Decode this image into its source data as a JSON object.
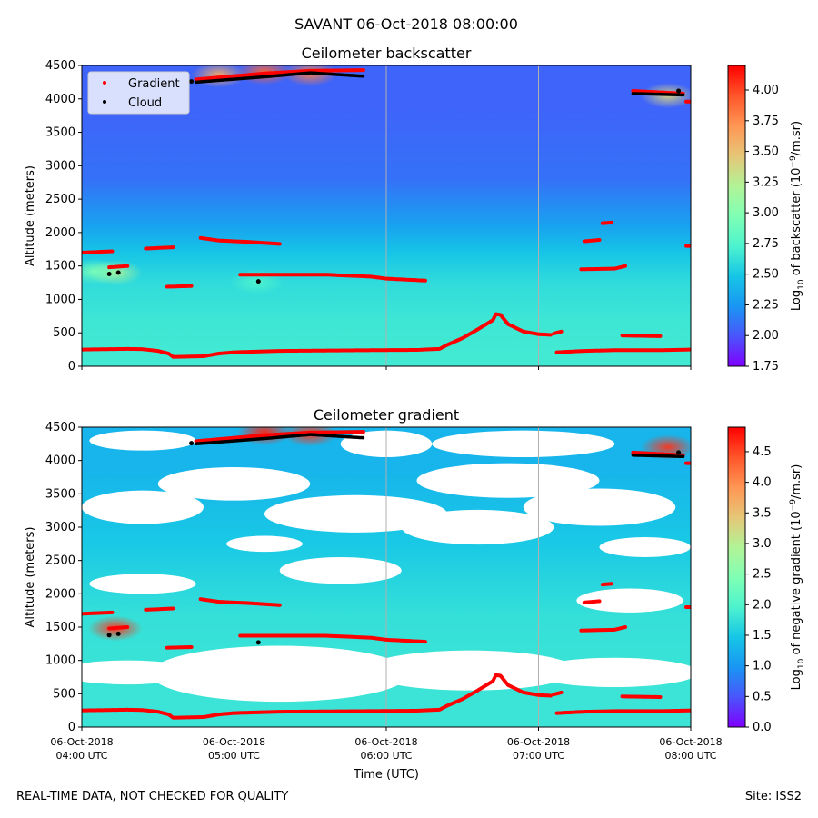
{
  "figure": {
    "suptitle": "SAVANT 06-Oct-2018 08:00:00",
    "footer_left": "REAL-TIME DATA, NOT CHECKED FOR QUALITY",
    "footer_right": "Site: ISS2"
  },
  "colors": {
    "rainbow": [
      "#8000ff",
      "#4a55fb",
      "#1996f3",
      "#16c6e6",
      "#4df3ce",
      "#80ffb4",
      "#b2f396",
      "#e6c677",
      "#ff9654",
      "#ff552a",
      "#ff0000"
    ],
    "gradient_marker": "#ff0000",
    "cloud_marker": "#000000",
    "vertical_gridline": "#b0b0b0"
  },
  "chart_data": [
    {
      "type": "heatmap",
      "title": "Ceilometer backscatter",
      "xlabel": "",
      "ylabel": "Altitude (meters)",
      "xticks": [
        "06-Oct-2018\n04:00 UTC",
        "06-Oct-2018\n05:00 UTC",
        "06-Oct-2018\n06:00 UTC",
        "06-Oct-2018\n07:00 UTC",
        "06-Oct-2018\n08:00 UTC"
      ],
      "show_xtick_labels": false,
      "x_hours": [
        4,
        8
      ],
      "ylim": [
        0,
        4500
      ],
      "yticks": [
        0,
        500,
        1000,
        1500,
        2000,
        2500,
        3000,
        3500,
        4000,
        4500
      ],
      "colorbar": {
        "label_prefix": "Log",
        "label_sub": "10",
        "label_mid": " of backscatter (10",
        "label_sup": "−9",
        "label_suffix": "/m.sr)",
        "range": [
          1.75,
          4.2
        ],
        "ticks": [
          "1.75",
          "2.00",
          "2.25",
          "2.50",
          "2.75",
          "3.00",
          "3.25",
          "3.50",
          "3.75",
          "4.00"
        ]
      },
      "legend": {
        "position": "upper-left",
        "entries": [
          {
            "label": "Gradient",
            "color": "#ff0000"
          },
          {
            "label": "Cloud",
            "color": "#000000"
          }
        ]
      },
      "field_bands": [
        {
          "from": 0,
          "to": 400,
          "value": 2.68
        },
        {
          "from": 400,
          "to": 1000,
          "value": 2.66
        },
        {
          "from": 1000,
          "to": 1500,
          "value": 2.6
        },
        {
          "from": 1500,
          "to": 1900,
          "value": 2.48
        },
        {
          "from": 1900,
          "to": 2300,
          "value": 2.3
        },
        {
          "from": 2300,
          "to": 3300,
          "value": 2.1
        },
        {
          "from": 3300,
          "to": 4500,
          "value": 2.05
        }
      ],
      "hotspots": [
        {
          "x": 4.22,
          "y": 1400,
          "value": 3.2
        },
        {
          "x": 4.08,
          "y": 1420,
          "value": 2.95
        },
        {
          "x": 5.15,
          "y": 1260,
          "value": 2.75
        },
        {
          "x": 4.9,
          "y": 4360,
          "value": 3.6
        },
        {
          "x": 5.2,
          "y": 4400,
          "value": 3.9
        },
        {
          "x": 5.5,
          "y": 4380,
          "value": 3.8
        },
        {
          "x": 7.85,
          "y": 4050,
          "value": 3.4
        }
      ],
      "gradient_segments": [
        [
          [
            4.0,
            250
          ],
          [
            4.3,
            260
          ],
          [
            4.4,
            255
          ],
          [
            4.5,
            230
          ],
          [
            4.57,
            190
          ],
          [
            4.6,
            140
          ],
          [
            4.8,
            150
          ],
          [
            4.9,
            190
          ],
          [
            5.0,
            210
          ],
          [
            5.3,
            230
          ],
          [
            5.9,
            240
          ],
          [
            6.2,
            245
          ],
          [
            6.35,
            260
          ],
          [
            6.4,
            320
          ],
          [
            6.5,
            420
          ],
          [
            6.6,
            550
          ],
          [
            6.7,
            690
          ],
          [
            6.72,
            780
          ],
          [
            6.75,
            770
          ],
          [
            6.8,
            630
          ],
          [
            6.9,
            520
          ],
          [
            7.0,
            480
          ],
          [
            7.08,
            470
          ]
        ],
        [
          [
            7.1,
            490
          ],
          [
            7.15,
            520
          ]
        ],
        [
          [
            7.12,
            210
          ],
          [
            7.3,
            230
          ],
          [
            7.5,
            240
          ],
          [
            7.8,
            240
          ],
          [
            8.0,
            250
          ]
        ],
        [
          [
            4.0,
            1700
          ],
          [
            4.2,
            1720
          ]
        ],
        [
          [
            4.18,
            1480
          ],
          [
            4.3,
            1500
          ]
        ],
        [
          [
            4.42,
            1760
          ],
          [
            4.6,
            1780
          ]
        ],
        [
          [
            4.56,
            1190
          ],
          [
            4.72,
            1200
          ]
        ],
        [
          [
            4.78,
            1920
          ],
          [
            4.9,
            1880
          ],
          [
            5.1,
            1860
          ],
          [
            5.3,
            1830
          ]
        ],
        [
          [
            5.04,
            1370
          ],
          [
            5.3,
            1370
          ],
          [
            5.6,
            1370
          ],
          [
            5.9,
            1340
          ],
          [
            6.0,
            1310
          ],
          [
            6.26,
            1280
          ]
        ],
        [
          [
            7.28,
            1450
          ],
          [
            7.5,
            1460
          ],
          [
            7.57,
            1500
          ]
        ],
        [
          [
            7.3,
            1870
          ],
          [
            7.4,
            1890
          ]
        ],
        [
          [
            7.42,
            2140
          ],
          [
            7.48,
            2150
          ]
        ],
        [
          [
            7.55,
            460
          ],
          [
            7.8,
            450
          ]
        ],
        [
          [
            7.97,
            1800
          ],
          [
            8.0,
            1800
          ]
        ],
        [
          [
            4.75,
            4290
          ],
          [
            5.2,
            4380
          ],
          [
            5.5,
            4420
          ],
          [
            5.85,
            4430
          ]
        ],
        [
          [
            7.62,
            4120
          ],
          [
            7.95,
            4080
          ]
        ],
        [
          [
            7.97,
            3960
          ],
          [
            8.0,
            3960
          ]
        ]
      ],
      "cloud_segments": [
        [
          [
            4.75,
            4250
          ],
          [
            5.2,
            4330
          ],
          [
            5.5,
            4390
          ],
          [
            5.85,
            4340
          ]
        ],
        [
          [
            7.62,
            4080
          ],
          [
            7.95,
            4060
          ]
        ]
      ],
      "cloud_points": [
        [
          4.18,
          1380
        ],
        [
          4.24,
          1400
        ],
        [
          5.16,
          1270
        ],
        [
          4.72,
          4260
        ],
        [
          7.92,
          4120
        ]
      ]
    },
    {
      "type": "heatmap",
      "title": "Ceilometer gradient",
      "xlabel": "Time (UTC)",
      "ylabel": "Altitude (meters)",
      "xticks": [
        "06-Oct-2018\n04:00 UTC",
        "06-Oct-2018\n05:00 UTC",
        "06-Oct-2018\n06:00 UTC",
        "06-Oct-2018\n07:00 UTC",
        "06-Oct-2018\n08:00 UTC"
      ],
      "show_xtick_labels": true,
      "x_hours": [
        4,
        8
      ],
      "ylim": [
        0,
        4500
      ],
      "yticks": [
        0,
        500,
        1000,
        1500,
        2000,
        2500,
        3000,
        3500,
        4000,
        4500
      ],
      "colorbar": {
        "label_prefix": "Log",
        "label_sub": "10",
        "label_mid": " of negative gradient (10",
        "label_sup": "−9",
        "label_suffix": "/m.sr)",
        "range": [
          0.0,
          4.9
        ],
        "ticks": [
          "0.0",
          "0.5",
          "1.0",
          "1.5",
          "2.0",
          "2.5",
          "3.0",
          "3.5",
          "4.0",
          "4.5"
        ]
      },
      "field_bands": [
        {
          "from": 0,
          "to": 1000,
          "value": 1.8
        },
        {
          "from": 1000,
          "to": 2300,
          "value": 1.75
        },
        {
          "from": 2300,
          "to": 3200,
          "value": 1.5
        },
        {
          "from": 3200,
          "to": 4500,
          "value": 1.3
        }
      ],
      "gaps": [
        {
          "x": 5.3,
          "y": 800,
          "rx": 0.85,
          "ry": 420
        },
        {
          "x": 6.55,
          "y": 850,
          "rx": 0.7,
          "ry": 300
        },
        {
          "x": 4.3,
          "y": 820,
          "rx": 0.45,
          "ry": 180
        },
        {
          "x": 7.5,
          "y": 820,
          "rx": 0.55,
          "ry": 220
        },
        {
          "x": 7.6,
          "y": 1900,
          "rx": 0.35,
          "ry": 180
        },
        {
          "x": 4.4,
          "y": 2150,
          "rx": 0.35,
          "ry": 150
        },
        {
          "x": 4.4,
          "y": 3300,
          "rx": 0.4,
          "ry": 250
        },
        {
          "x": 5.0,
          "y": 3650,
          "rx": 0.5,
          "ry": 250
        },
        {
          "x": 5.7,
          "y": 2350,
          "rx": 0.4,
          "ry": 200
        },
        {
          "x": 5.8,
          "y": 3200,
          "rx": 0.6,
          "ry": 280
        },
        {
          "x": 6.6,
          "y": 3000,
          "rx": 0.5,
          "ry": 260
        },
        {
          "x": 6.8,
          "y": 3700,
          "rx": 0.6,
          "ry": 260
        },
        {
          "x": 7.4,
          "y": 3300,
          "rx": 0.5,
          "ry": 280
        },
        {
          "x": 7.7,
          "y": 2700,
          "rx": 0.3,
          "ry": 150
        },
        {
          "x": 6.9,
          "y": 4250,
          "rx": 0.6,
          "ry": 200
        },
        {
          "x": 4.4,
          "y": 4300,
          "rx": 0.35,
          "ry": 150
        },
        {
          "x": 6.0,
          "y": 4250,
          "rx": 0.3,
          "ry": 200
        },
        {
          "x": 5.2,
          "y": 2750,
          "rx": 0.25,
          "ry": 120
        }
      ],
      "hotspots": [
        {
          "x": 4.22,
          "y": 1480,
          "value": 4.6
        },
        {
          "x": 5.2,
          "y": 4420,
          "value": 4.7
        },
        {
          "x": 5.5,
          "y": 4400,
          "value": 4.6
        },
        {
          "x": 7.85,
          "y": 4200,
          "value": 4.6
        }
      ],
      "gradient_segments": [
        [
          [
            4.0,
            250
          ],
          [
            4.3,
            260
          ],
          [
            4.4,
            255
          ],
          [
            4.5,
            230
          ],
          [
            4.57,
            190
          ],
          [
            4.6,
            140
          ],
          [
            4.8,
            150
          ],
          [
            4.9,
            190
          ],
          [
            5.0,
            210
          ],
          [
            5.3,
            230
          ],
          [
            5.9,
            240
          ],
          [
            6.2,
            245
          ],
          [
            6.35,
            260
          ],
          [
            6.4,
            320
          ],
          [
            6.5,
            420
          ],
          [
            6.6,
            550
          ],
          [
            6.7,
            690
          ],
          [
            6.72,
            780
          ],
          [
            6.75,
            770
          ],
          [
            6.8,
            630
          ],
          [
            6.9,
            520
          ],
          [
            7.0,
            480
          ],
          [
            7.08,
            470
          ]
        ],
        [
          [
            7.1,
            490
          ],
          [
            7.15,
            520
          ]
        ],
        [
          [
            7.12,
            210
          ],
          [
            7.3,
            230
          ],
          [
            7.5,
            240
          ],
          [
            7.8,
            240
          ],
          [
            8.0,
            250
          ]
        ],
        [
          [
            4.0,
            1700
          ],
          [
            4.2,
            1720
          ]
        ],
        [
          [
            4.18,
            1480
          ],
          [
            4.3,
            1500
          ]
        ],
        [
          [
            4.42,
            1760
          ],
          [
            4.6,
            1780
          ]
        ],
        [
          [
            4.56,
            1190
          ],
          [
            4.72,
            1200
          ]
        ],
        [
          [
            4.78,
            1920
          ],
          [
            4.9,
            1880
          ],
          [
            5.1,
            1860
          ],
          [
            5.3,
            1830
          ]
        ],
        [
          [
            5.04,
            1370
          ],
          [
            5.3,
            1370
          ],
          [
            5.6,
            1370
          ],
          [
            5.9,
            1340
          ],
          [
            6.0,
            1310
          ],
          [
            6.26,
            1280
          ]
        ],
        [
          [
            7.28,
            1450
          ],
          [
            7.5,
            1460
          ],
          [
            7.57,
            1500
          ]
        ],
        [
          [
            7.3,
            1870
          ],
          [
            7.4,
            1890
          ]
        ],
        [
          [
            7.42,
            2140
          ],
          [
            7.48,
            2150
          ]
        ],
        [
          [
            7.55,
            460
          ],
          [
            7.8,
            450
          ]
        ],
        [
          [
            7.97,
            1800
          ],
          [
            8.0,
            1800
          ]
        ],
        [
          [
            4.75,
            4290
          ],
          [
            5.2,
            4380
          ],
          [
            5.5,
            4420
          ],
          [
            5.85,
            4430
          ]
        ],
        [
          [
            7.62,
            4120
          ],
          [
            7.95,
            4080
          ]
        ],
        [
          [
            7.97,
            3960
          ],
          [
            8.0,
            3960
          ]
        ]
      ],
      "cloud_segments": [
        [
          [
            4.75,
            4250
          ],
          [
            5.2,
            4330
          ],
          [
            5.5,
            4390
          ],
          [
            5.85,
            4340
          ]
        ],
        [
          [
            7.62,
            4080
          ],
          [
            7.95,
            4060
          ]
        ]
      ],
      "cloud_points": [
        [
          4.18,
          1380
        ],
        [
          4.24,
          1400
        ],
        [
          5.16,
          1270
        ],
        [
          4.72,
          4260
        ],
        [
          7.92,
          4120
        ]
      ]
    }
  ]
}
